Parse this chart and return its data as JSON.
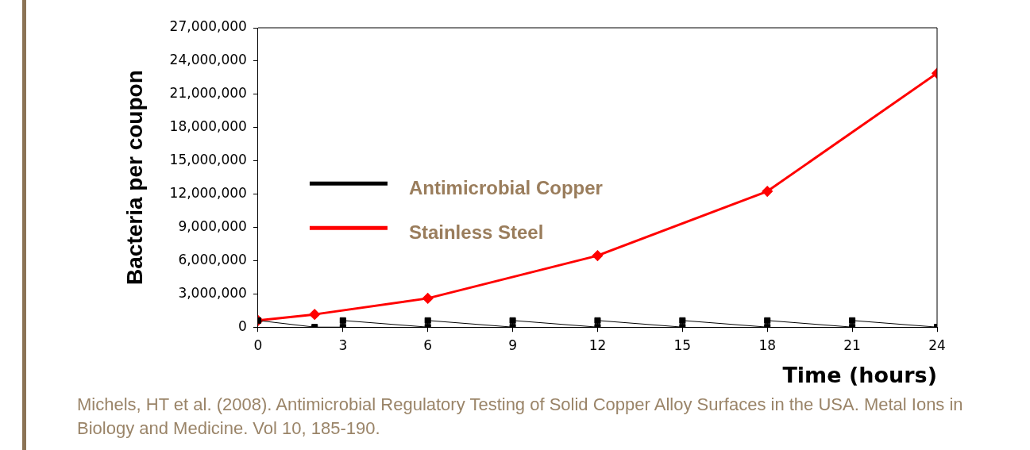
{
  "chart_data": {
    "type": "line",
    "xlabel": "Time (hours)",
    "ylabel": "Bacteria per coupon",
    "xlim": [
      0,
      24
    ],
    "xticks": [
      0,
      3,
      6,
      9,
      12,
      15,
      18,
      21,
      24
    ],
    "ylim": [
      0,
      27000000
    ],
    "yticks": [
      {
        "value": 0,
        "label": "0"
      },
      {
        "value": 3000000,
        "label": "3,000,000"
      },
      {
        "value": 6000000,
        "label": "6,000,000"
      },
      {
        "value": 9000000,
        "label": "9,000,000"
      },
      {
        "value": 12000000,
        "label": "12,000,000"
      },
      {
        "value": 15000000,
        "label": "15,000,000"
      },
      {
        "value": 18000000,
        "label": "18,000,000"
      },
      {
        "value": 21000000,
        "label": "21,000,000"
      },
      {
        "value": 24000000,
        "label": "24,000,000"
      },
      {
        "value": 27000000,
        "label": "27,000,000"
      }
    ],
    "grid": false,
    "legend": "left",
    "series": [
      {
        "name": "Antimicrobial Copper",
        "color": "#000000",
        "marker": "square",
        "x": [
          0,
          2,
          3,
          3,
          6,
          6,
          9,
          9,
          12,
          12,
          15,
          15,
          18,
          18,
          21,
          21,
          24
        ],
        "values": [
          600000,
          0,
          0,
          600000,
          0,
          600000,
          0,
          600000,
          0,
          600000,
          0,
          600000,
          0,
          600000,
          0,
          600000,
          0
        ]
      },
      {
        "name": "Stainless Steel",
        "color": "#ff0000",
        "marker": "diamond",
        "x": [
          0,
          2,
          6,
          12,
          18,
          24
        ],
        "values": [
          600000,
          1150000,
          2600000,
          6450000,
          12250000,
          22900000
        ]
      }
    ],
    "annotations": [
      "Michels, HT et al. (2008). Antimicrobial Regulatory Testing of Solid Copper Alloy Surfaces in the USA. Metal Ions in Biology and Medicine. Vol 10, 185-190."
    ]
  }
}
